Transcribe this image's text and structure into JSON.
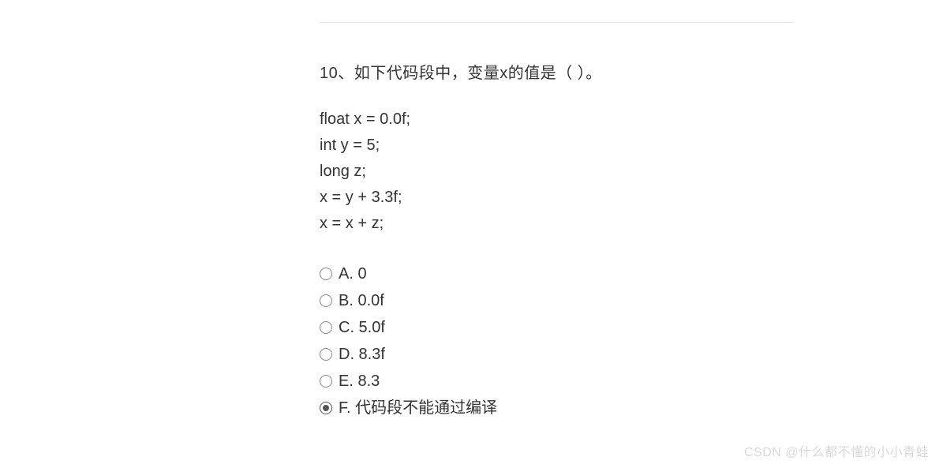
{
  "content": {
    "question": "10、如下代码段中，变量x的值是（    ）。",
    "code_lines": [
      "float x = 0.0f;",
      "int y = 5;",
      "long z;",
      "x = y + 3.3f;",
      "x = x + z;"
    ],
    "options": [
      {
        "label": "A. 0",
        "selected": false
      },
      {
        "label": "B. 0.0f",
        "selected": false
      },
      {
        "label": "C. 5.0f",
        "selected": false
      },
      {
        "label": "D. 8.3f",
        "selected": false
      },
      {
        "label": "E. 8.3",
        "selected": false
      },
      {
        "label": "F. 代码段不能通过编译",
        "selected": true
      }
    ]
  },
  "watermark": "CSDN @什么都不懂的小小青蛙",
  "colors": {
    "background": "#ffffff",
    "text": "#333333",
    "divider": "#e5e5e5",
    "radio_border": "#888888",
    "radio_fill": "#555555",
    "watermark": "#d8d8d8"
  },
  "typography": {
    "question_fontsize": 20,
    "code_fontsize": 20,
    "option_fontsize": 20,
    "watermark_fontsize": 16
  }
}
